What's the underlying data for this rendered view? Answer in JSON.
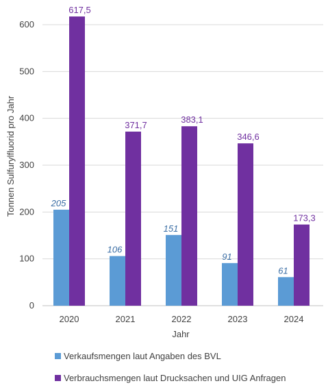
{
  "chart_data": {
    "type": "bar",
    "title": "",
    "xlabel": "Jahr",
    "ylabel": "Tonnen Sulfurylfluorid pro Jahr",
    "categories": [
      "2020",
      "2021",
      "2022",
      "2023",
      "2024"
    ],
    "ylim": [
      0,
      600
    ],
    "yticks": [
      "0",
      "100",
      "200",
      "300",
      "400",
      "500",
      "600"
    ],
    "grid": true,
    "legend_position": "bottom",
    "series": [
      {
        "name": "Verkaufsmengen laut Angaben des BVL",
        "values": [
          205,
          106,
          151,
          91,
          61
        ],
        "labels": [
          "205",
          "106",
          "151",
          "91",
          "61"
        ],
        "color": "#5b9bd5",
        "label_color": "#3b6ea5",
        "label_style": "italic"
      },
      {
        "name": "Verbrauchsmengen laut Drucksachen und UIG Anfragen",
        "values": [
          617.5,
          371.7,
          383.1,
          346.6,
          173.3
        ],
        "labels": [
          "617,5",
          "371,7",
          "383,1",
          "346,6",
          "173,3"
        ],
        "color": "#7030a0",
        "label_color": "#7030a0",
        "label_style": "normal"
      }
    ]
  }
}
